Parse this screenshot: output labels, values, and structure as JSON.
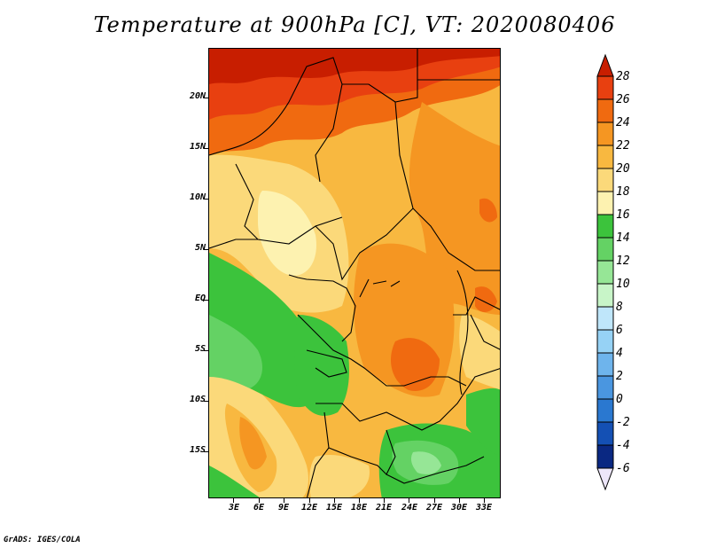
{
  "title": "Temperature at 900hPa [C], VT: 2020080406",
  "credit": "GrADS: IGES/COLA",
  "map": {
    "lat_labels": [
      "20N",
      "15N",
      "10N",
      "5N",
      "EQ",
      "5S",
      "10S",
      "15S"
    ],
    "lon_labels": [
      "3E",
      "6E",
      "9E",
      "12E",
      "15E",
      "18E",
      "21E",
      "24E",
      "27E",
      "30E",
      "33E"
    ]
  },
  "colorbar": {
    "labels": [
      "28",
      "26",
      "24",
      "22",
      "20",
      "18",
      "16",
      "14",
      "12",
      "10",
      "8",
      "6",
      "4",
      "2",
      "0",
      "-2",
      "-4",
      "-6"
    ],
    "colors": [
      "#c81e00",
      "#e84010",
      "#f06a10",
      "#f59622",
      "#f8b840",
      "#fbd97a",
      "#fdf2b0",
      "#3cc33c",
      "#64d264",
      "#96e696",
      "#c8f5c8",
      "#bfe6fa",
      "#96d2f5",
      "#6eb4ec",
      "#4a96e0",
      "#2a78d0",
      "#1450b4",
      "#0a2882",
      "#ede6fa"
    ]
  }
}
